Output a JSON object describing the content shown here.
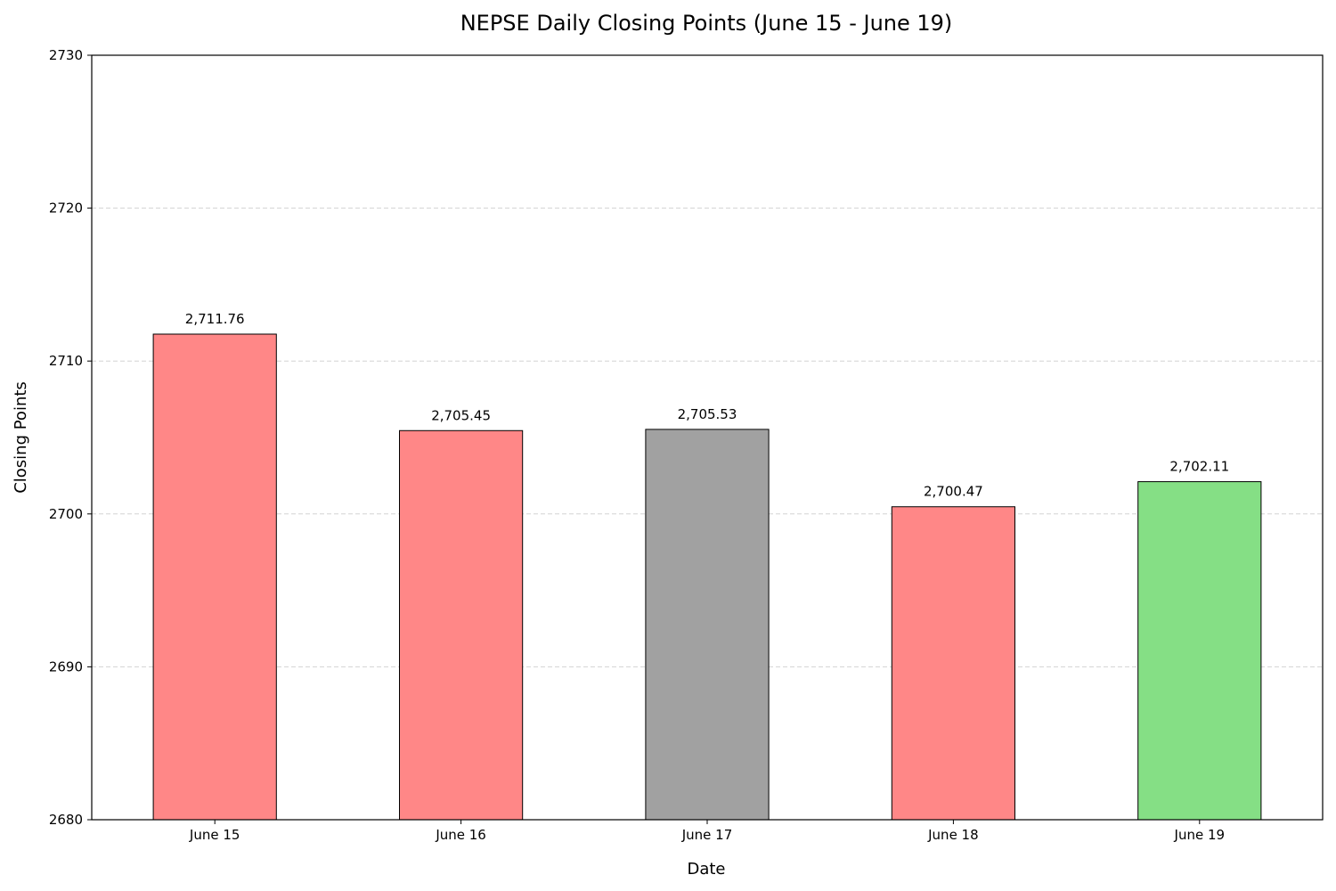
{
  "chart_data": {
    "type": "bar",
    "title": "NEPSE Daily Closing Points (June 15 - June 19)",
    "xlabel": "Date",
    "ylabel": "Closing Points",
    "categories": [
      "June 15",
      "June 16",
      "June 17",
      "June 18",
      "June 19"
    ],
    "values": [
      2711.76,
      2705.45,
      2705.53,
      2700.47,
      2702.11
    ],
    "value_labels": [
      "2,711.76",
      "2,705.45",
      "2,705.53",
      "2,700.47",
      "2,702.11"
    ],
    "bar_colors": [
      "#ff8787",
      "#ff8787",
      "#a1a1a1",
      "#ff8787",
      "#85df85"
    ],
    "ylim": [
      2680,
      2730
    ],
    "yticks": [
      2680,
      2690,
      2700,
      2710,
      2720,
      2730
    ],
    "ytick_labels": [
      "2680",
      "2690",
      "2700",
      "2710",
      "2720",
      "2730"
    ],
    "grid": "horizontal dashed",
    "legend": "none"
  }
}
